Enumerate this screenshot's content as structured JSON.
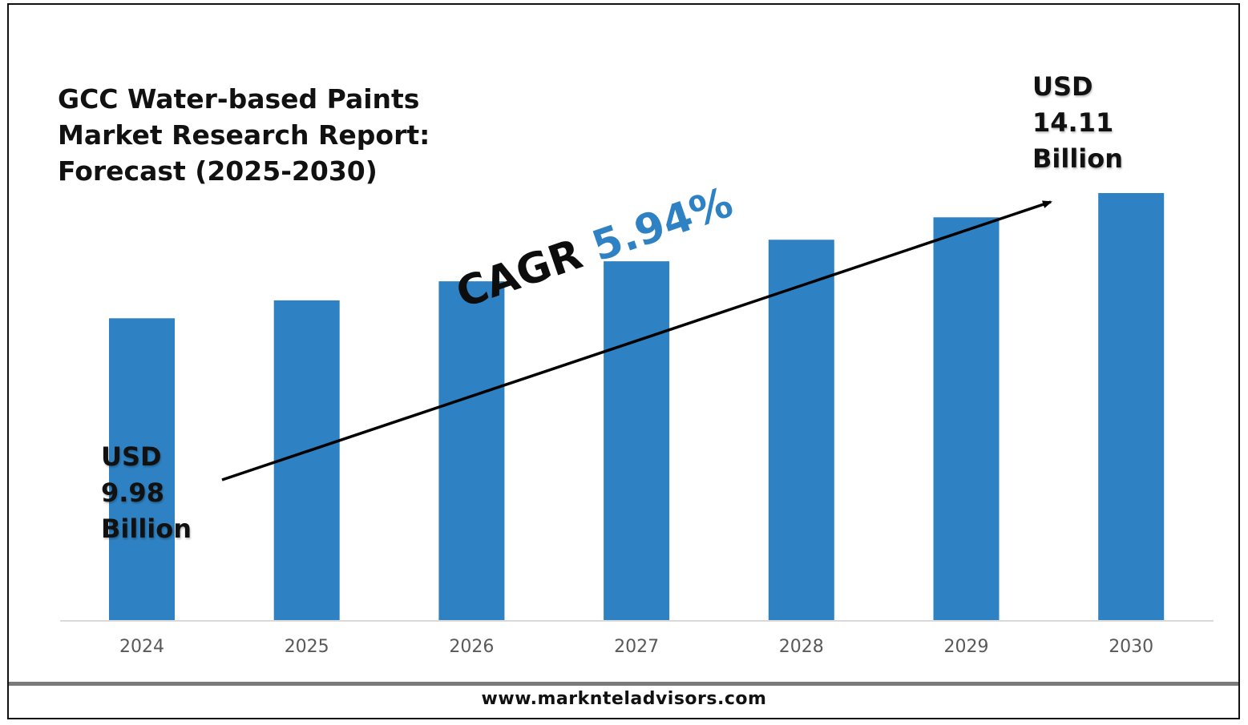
{
  "chart_data": {
    "type": "bar",
    "title": [
      "GCC Water-based Paints",
      "Market Research Report:",
      "Forecast (2025-2030)"
    ],
    "categories": [
      "2024",
      "2025",
      "2026",
      "2027",
      "2028",
      "2029",
      "2030"
    ],
    "values": [
      9.98,
      10.57,
      11.2,
      11.86,
      12.57,
      13.31,
      14.11
    ],
    "ylim": [
      0,
      14.11
    ],
    "bar_color": "#2e82c3",
    "grid": false,
    "annotations": {
      "start": {
        "line1": "USD",
        "line2": "9.98",
        "line3": "Billion"
      },
      "end": {
        "line1": "USD",
        "line2": "14.11",
        "line3": "Billion"
      },
      "cagr": {
        "label": "CAGR",
        "value": "5.94%"
      }
    }
  },
  "footer": {
    "website": "www.marknteladvisors.com"
  },
  "colors": {
    "accent": "#2e82c3",
    "text": "#111111",
    "footer_bar": "#7a7a7a"
  }
}
